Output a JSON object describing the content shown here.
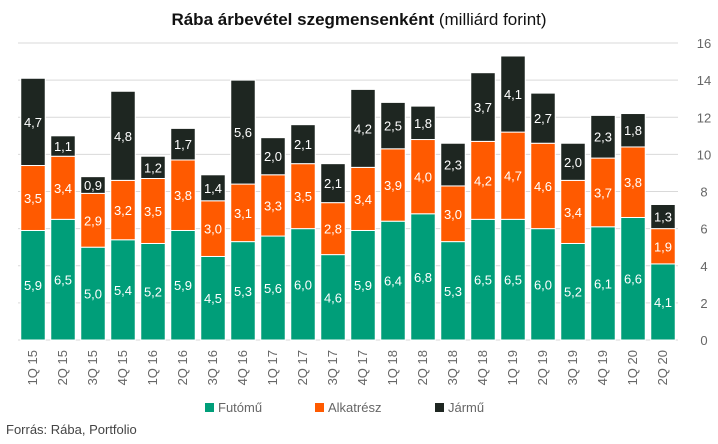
{
  "title_bold": "Rába árbevétel szegmensenként",
  "title_normal": "(milliárd forint)",
  "source": "Forrás: Rába, Portfolio",
  "colors": {
    "futomu": "#009e79",
    "alkatresz": "#ff5a00",
    "jarmu": "#1e2621",
    "grid": "#d9d9d9",
    "axis_text": "#666666"
  },
  "chart_data": {
    "type": "bar",
    "stacked": true,
    "title": "Rába árbevétel szegmensenként (milliárd forint)",
    "categories": [
      "1Q 15",
      "2Q 15",
      "3Q 15",
      "4Q 15",
      "1Q 16",
      "2Q 16",
      "3Q 16",
      "4Q 16",
      "1Q 17",
      "2Q 17",
      "3Q 17",
      "4Q 17",
      "1Q 18",
      "2Q 18",
      "3Q 18",
      "4Q 18",
      "1Q 19",
      "2Q 19",
      "3Q 19",
      "4Q 19",
      "1Q 20",
      "2Q 20"
    ],
    "series": [
      {
        "name": "Futómű",
        "values": [
          5.9,
          6.5,
          5.0,
          5.4,
          5.2,
          5.9,
          4.5,
          5.3,
          5.6,
          6.0,
          4.6,
          5.9,
          6.4,
          6.8,
          5.3,
          6.5,
          6.5,
          6.0,
          5.2,
          6.1,
          6.6,
          4.1
        ]
      },
      {
        "name": "Alkatrész",
        "values": [
          3.5,
          3.4,
          2.9,
          3.2,
          3.5,
          3.8,
          3.0,
          3.1,
          3.3,
          3.5,
          2.8,
          3.4,
          3.9,
          4.0,
          3.0,
          4.2,
          4.7,
          4.6,
          3.4,
          3.7,
          3.8,
          1.9
        ]
      },
      {
        "name": "Jármű",
        "values": [
          4.7,
          1.1,
          0.9,
          4.8,
          1.2,
          1.7,
          1.4,
          5.6,
          2.0,
          2.1,
          2.1,
          4.2,
          2.5,
          1.8,
          2.3,
          3.7,
          4.1,
          2.7,
          2.0,
          2.3,
          1.8,
          1.3
        ]
      }
    ],
    "value_labels": [
      [
        "5,9",
        "6,5",
        "5,0",
        "5,4",
        "5,2",
        "5,9",
        "4,5",
        "5,3",
        "5,6",
        "6,0",
        "4,6",
        "5,9",
        "6,4",
        "6,8",
        "5,3",
        "6,5",
        "6,5",
        "6,0",
        "5,2",
        "6,1",
        "6,6",
        "4,1"
      ],
      [
        "3,5",
        "3,4",
        "2,9",
        "3,2",
        "3,5",
        "3,8",
        "3,0",
        "3,1",
        "3,3",
        "3,5",
        "2,8",
        "3,4",
        "3,9",
        "4,0",
        "3,0",
        "4,2",
        "4,7",
        "4,6",
        "3,4",
        "3,7",
        "3,8",
        "1,9"
      ],
      [
        "4,7",
        "1,1",
        "0,9",
        "4,8",
        "1,2",
        "1,7",
        "1,4",
        "5,6",
        "2,0",
        "2,1",
        "2,1",
        "4,2",
        "2,5",
        "1,8",
        "2,3",
        "3,7",
        "4,1",
        "2,7",
        "2,0",
        "2,3",
        "1,8",
        "1,3"
      ]
    ],
    "y_axis": {
      "position": "right",
      "min": 0,
      "max": 16,
      "ticks": [
        0,
        2,
        4,
        6,
        8,
        10,
        12,
        14,
        16
      ]
    },
    "grid": true,
    "legend": "bottom"
  }
}
